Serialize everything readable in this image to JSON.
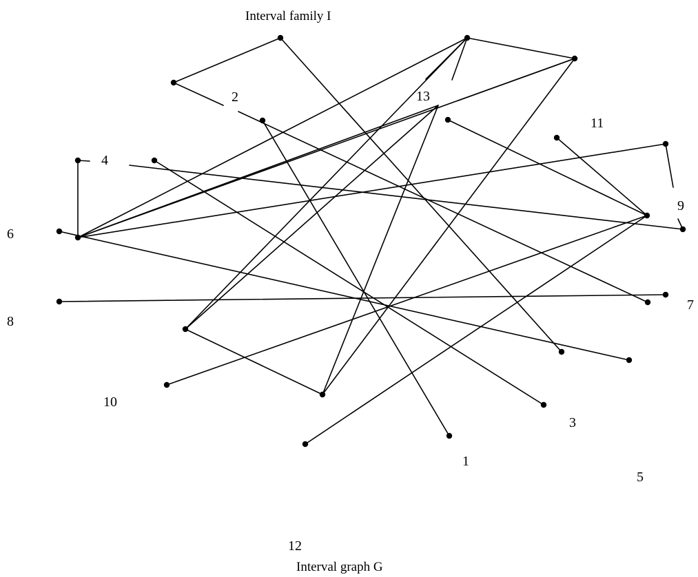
{
  "top_caption": "Interval family I",
  "bottom_caption": "Interval graph G",
  "vertex_labels": {
    "v1": "1",
    "v2": "2",
    "v3": "3",
    "v4": "4",
    "v5": "5",
    "v6": "6",
    "v7": "7",
    "v8": "8",
    "v9": "9",
    "v10": "10",
    "v11": "11",
    "v12": "12",
    "v13": "13"
  },
  "line_color": "#000000",
  "dot_color": "#000000"
}
